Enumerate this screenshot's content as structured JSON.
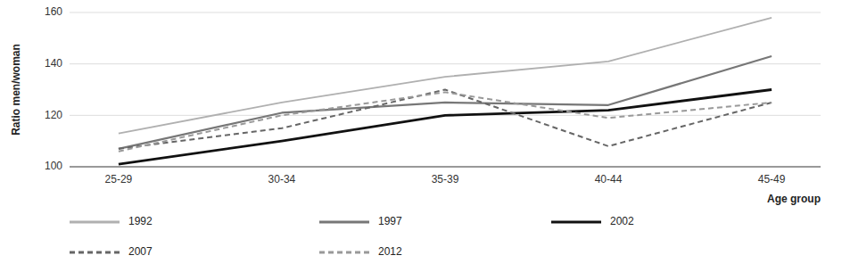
{
  "chart_data": {
    "type": "line",
    "ylabel": "Ratio men/woman",
    "xlabel": "Age group",
    "categories": [
      "25-29",
      "30-34",
      "35-39",
      "40-44",
      "45-49"
    ],
    "series": [
      {
        "name": "1992",
        "color": "#b0b0b0",
        "line_style": "solid",
        "values": [
          113,
          125,
          135,
          141,
          158
        ]
      },
      {
        "name": "1997",
        "color": "#777777",
        "line_style": "solid",
        "values": [
          107,
          121,
          125,
          124,
          143
        ]
      },
      {
        "name": "2002",
        "color": "#111111",
        "line_style": "solid",
        "values": [
          101,
          110,
          120,
          122,
          130
        ]
      },
      {
        "name": "2007",
        "color": "#666666",
        "line_style": "dashed",
        "values": [
          107,
          115,
          130,
          108,
          125
        ]
      },
      {
        "name": "2012",
        "color": "#999999",
        "line_style": "dashed",
        "values": [
          106,
          120,
          129,
          119,
          125
        ]
      }
    ],
    "ylim": [
      100,
      160
    ],
    "yticks": [
      100,
      120,
      140,
      160
    ],
    "grid": true,
    "legend": "bottom"
  }
}
